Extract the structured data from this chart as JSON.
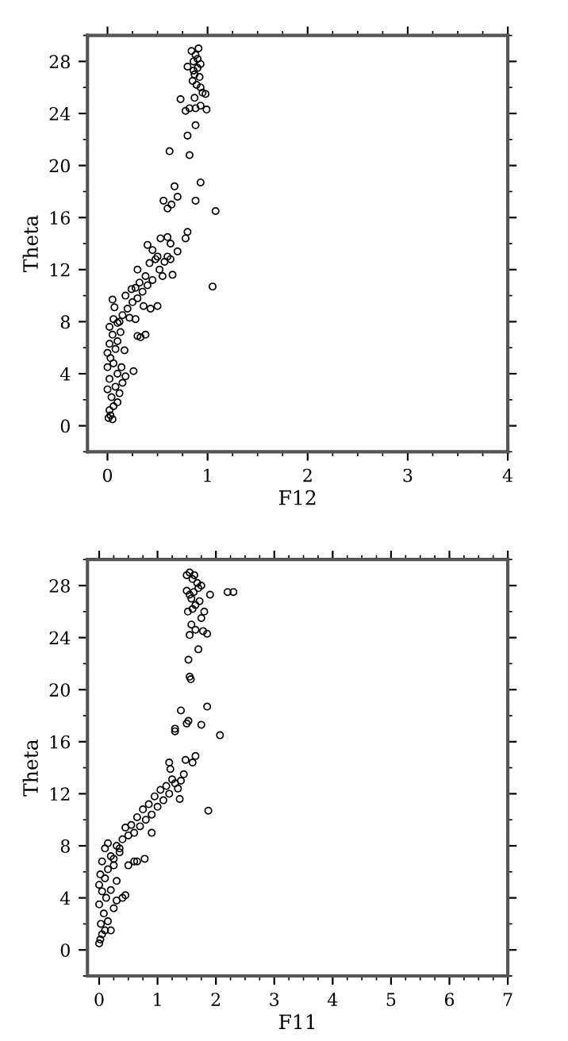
{
  "chart_data": [
    {
      "type": "scatter",
      "xlabel": "F12",
      "ylabel": "Theta",
      "xlim": [
        -0.2,
        4
      ],
      "ylim": [
        -2,
        30
      ],
      "xticks": [
        0,
        1,
        2,
        3,
        4
      ],
      "yticks": [
        0,
        4,
        8,
        12,
        16,
        20,
        24,
        28
      ],
      "marker": "circle",
      "grid": false,
      "series": [
        {
          "color": "#000000",
          "x": [
            0.01,
            0.03,
            0.05,
            0.02,
            0.06,
            0.1,
            0.04,
            0.12,
            0.0,
            0.08,
            0.15,
            0.02,
            0.18,
            0.1,
            0.26,
            0.0,
            0.06,
            0.14,
            0.03,
            0.0,
            0.08,
            0.17,
            0.02,
            0.1,
            0.05,
            0.13,
            0.02,
            0.1,
            0.06,
            0.15,
            0.07,
            0.05,
            0.2,
            0.18,
            0.12,
            0.22,
            0.25,
            0.28,
            0.3,
            0.32,
            0.35,
            0.3,
            0.38,
            0.4,
            0.42,
            0.45,
            0.48,
            0.5,
            0.52,
            0.55,
            0.57,
            0.6,
            0.63,
            0.65,
            0.7,
            0.45,
            0.4,
            0.53,
            0.6,
            0.63,
            0.78,
            0.8,
            0.28,
            0.33,
            0.3,
            0.38,
            0.43,
            0.5,
            0.24,
            0.36,
            0.56,
            0.6,
            0.64,
            0.7,
            0.67,
            0.88,
            0.93,
            1.08,
            1.05,
            0.62,
            0.82,
            0.8,
            0.78,
            0.73,
            0.88,
            0.99,
            0.98,
            0.82,
            0.88,
            0.93,
            0.85,
            0.87,
            0.9,
            0.86,
            0.88,
            0.91,
            0.84,
            0.92,
            0.89,
            0.93,
            0.8,
            0.86,
            0.9,
            0.93,
            0.95,
            0.87
          ],
          "values": [
            0.6,
            0.8,
            0.5,
            1.2,
            1.5,
            1.8,
            2.2,
            2.5,
            2.8,
            3.0,
            3.3,
            3.6,
            3.8,
            4.0,
            4.2,
            4.5,
            4.8,
            4.5,
            5.2,
            5.6,
            5.9,
            5.8,
            6.3,
            6.5,
            7.0,
            7.2,
            7.6,
            7.9,
            8.2,
            8.5,
            9.1,
            9.7,
            9.0,
            10.0,
            8.0,
            8.3,
            9.5,
            10.6,
            9.8,
            11.0,
            10.3,
            12.0,
            11.5,
            10.8,
            12.5,
            11.2,
            12.8,
            13.0,
            12.0,
            11.5,
            12.6,
            13.0,
            12.8,
            11.6,
            13.4,
            13.5,
            13.9,
            14.4,
            14.5,
            14.0,
            14.4,
            14.9,
            8.2,
            6.8,
            6.9,
            7.0,
            9.0,
            9.2,
            10.5,
            9.2,
            17.3,
            16.7,
            17.0,
            17.6,
            18.4,
            17.3,
            18.7,
            16.5,
            10.7,
            21.1,
            20.8,
            22.3,
            24.2,
            25.1,
            23.1,
            24.3,
            25.5,
            24.4,
            24.4,
            24.6,
            26.5,
            27.0,
            27.5,
            28.0,
            28.5,
            29.0,
            28.8,
            26.8,
            26.2,
            27.8,
            27.6,
            27.3,
            28.2,
            26.0,
            25.6,
            25.2
          ]
        }
      ]
    },
    {
      "type": "scatter",
      "xlabel": "F11",
      "ylabel": "Theta",
      "xlim": [
        -0.2,
        7
      ],
      "ylim": [
        -2,
        30
      ],
      "xticks": [
        0,
        1,
        2,
        3,
        4,
        5,
        6,
        7
      ],
      "yticks": [
        0,
        4,
        8,
        12,
        16,
        20,
        24,
        28
      ],
      "marker": "circle",
      "grid": false,
      "series": [
        {
          "color": "#000000",
          "x": [
            0.0,
            0.02,
            0.05,
            0.1,
            0.03,
            0.15,
            0.2,
            0.08,
            0.25,
            0.0,
            0.3,
            0.12,
            0.4,
            0.45,
            0.05,
            0.2,
            0.0,
            0.1,
            0.3,
            0.02,
            0.15,
            0.25,
            0.05,
            0.2,
            0.35,
            0.1,
            0.3,
            0.15,
            0.4,
            0.25,
            0.5,
            0.45,
            0.6,
            0.55,
            0.7,
            0.65,
            0.8,
            0.75,
            0.9,
            0.85,
            1.0,
            0.95,
            1.1,
            1.05,
            1.2,
            1.15,
            1.3,
            1.25,
            1.4,
            1.35,
            1.45,
            1.2,
            1.22,
            1.48,
            1.6,
            1.65,
            0.78,
            0.6,
            0.65,
            0.35,
            0.5,
            0.9,
            1.38,
            1.3,
            1.3,
            1.4,
            1.5,
            1.53,
            1.75,
            1.85,
            2.07,
            1.87,
            1.55,
            1.57,
            1.53,
            1.7,
            1.55,
            1.85,
            1.65,
            1.75,
            1.58,
            1.52,
            1.5,
            1.55,
            1.6,
            1.62,
            1.58,
            1.65,
            1.7,
            1.6,
            1.55,
            1.68,
            1.72,
            1.5,
            1.63,
            1.75,
            1.9,
            2.2,
            2.3,
            1.8,
            1.78
          ],
          "values": [
            0.5,
            0.8,
            1.2,
            1.5,
            2.0,
            2.2,
            1.5,
            2.8,
            3.2,
            3.5,
            3.8,
            4.0,
            4.0,
            4.2,
            4.5,
            4.6,
            5.0,
            5.5,
            5.3,
            5.8,
            6.2,
            6.5,
            6.8,
            7.2,
            7.5,
            7.8,
            8.0,
            8.2,
            8.5,
            7.0,
            8.8,
            9.4,
            9.0,
            9.6,
            9.5,
            10.2,
            10.0,
            10.8,
            10.4,
            11.2,
            11.0,
            11.8,
            11.5,
            12.3,
            12.0,
            12.6,
            12.8,
            13.1,
            13.0,
            12.4,
            13.5,
            14.4,
            13.9,
            14.6,
            14.4,
            14.9,
            7.0,
            6.8,
            6.8,
            7.8,
            6.5,
            9.0,
            11.6,
            17.0,
            16.8,
            18.4,
            17.4,
            17.6,
            17.3,
            18.7,
            16.5,
            10.7,
            21.0,
            20.8,
            22.3,
            23.1,
            24.2,
            24.3,
            24.6,
            25.5,
            25.0,
            26.0,
            28.8,
            29.0,
            28.5,
            27.5,
            27.0,
            26.5,
            27.8,
            26.2,
            27.3,
            28.2,
            26.8,
            27.6,
            28.8,
            28.0,
            27.3,
            27.5,
            27.5,
            26.0,
            24.5
          ]
        }
      ]
    }
  ]
}
